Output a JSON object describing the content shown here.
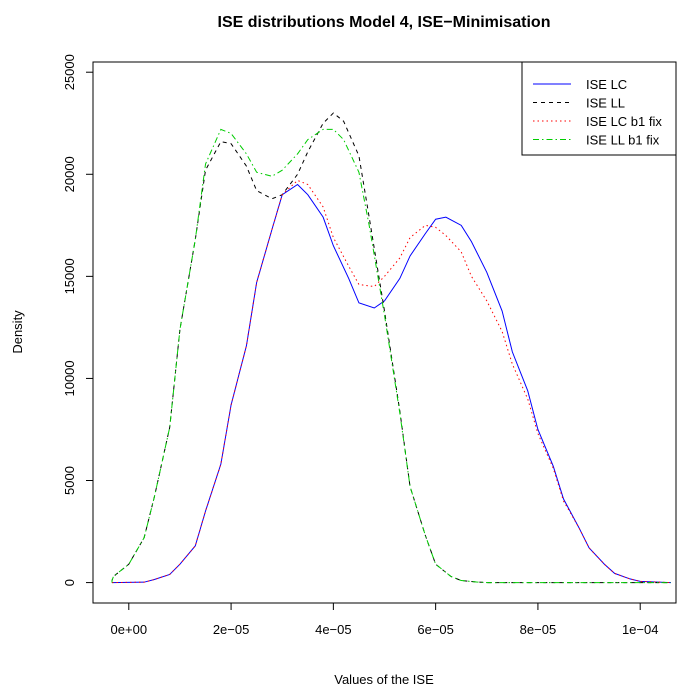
{
  "chart_data": {
    "type": "line",
    "title": "ISE distributions Model 4, ISE−Minimisation",
    "xlabel": "Values of the ISE",
    "ylabel": "Density",
    "xlim": [
      -7e-06,
      0.000107
    ],
    "ylim": [
      -1000,
      25500
    ],
    "x_ticks": [
      0,
      2e-05,
      4e-05,
      6e-05,
      8e-05,
      0.0001
    ],
    "x_tick_labels": [
      "0e+00",
      "2e−05",
      "4e−05",
      "6e−05",
      "8e−05",
      "1e−04"
    ],
    "y_ticks": [
      0,
      5000,
      10000,
      15000,
      20000,
      25000
    ],
    "y_tick_labels": [
      "0",
      "5000",
      "10000",
      "15000",
      "20000",
      "25000"
    ],
    "grid": false,
    "legend_position": "top-right",
    "series": [
      {
        "name": "ISE LC",
        "color": "#0000ff",
        "dash": "solid",
        "points": [
          [
            -1.5e-05,
            0
          ],
          [
            3e-06,
            20
          ],
          [
            5e-06,
            150
          ],
          [
            8e-06,
            400
          ],
          [
            1e-05,
            900
          ],
          [
            1.3e-05,
            1800
          ],
          [
            1.5e-05,
            3500
          ],
          [
            1.8e-05,
            5800
          ],
          [
            2e-05,
            8700
          ],
          [
            2.3e-05,
            11600
          ],
          [
            2.5e-05,
            14700
          ],
          [
            2.8e-05,
            17300
          ],
          [
            3e-05,
            19000
          ],
          [
            3.3e-05,
            19500
          ],
          [
            3.5e-05,
            19000
          ],
          [
            3.8e-05,
            17900
          ],
          [
            4e-05,
            16500
          ],
          [
            4.3e-05,
            14900
          ],
          [
            4.5e-05,
            13700
          ],
          [
            4.8e-05,
            13450
          ],
          [
            5e-05,
            13800
          ],
          [
            5.3e-05,
            14900
          ],
          [
            5.5e-05,
            16000
          ],
          [
            5.8e-05,
            17100
          ],
          [
            6e-05,
            17800
          ],
          [
            6.2e-05,
            17900
          ],
          [
            6.5e-05,
            17500
          ],
          [
            6.7e-05,
            16700
          ],
          [
            7e-05,
            15200
          ],
          [
            7.3e-05,
            13300
          ],
          [
            7.5e-05,
            11300
          ],
          [
            7.8e-05,
            9400
          ],
          [
            8e-05,
            7500
          ],
          [
            8.3e-05,
            5700
          ],
          [
            8.5e-05,
            4100
          ],
          [
            8.8e-05,
            2700
          ],
          [
            9e-05,
            1700
          ],
          [
            9.3e-05,
            900
          ],
          [
            9.5e-05,
            450
          ],
          [
            9.8e-05,
            180
          ],
          [
            0.0001,
            60
          ],
          [
            0.000106,
            0
          ]
        ]
      },
      {
        "name": "ISE LL",
        "color": "#000000",
        "dash": "4,4",
        "points": [
          [
            -1.5e-05,
            0
          ],
          [
            -5e-06,
            100
          ],
          [
            -3e-06,
            300
          ],
          [
            0.0,
            900
          ],
          [
            3e-06,
            2200
          ],
          [
            5e-06,
            4200
          ],
          [
            8e-06,
            7600
          ],
          [
            1e-05,
            12400
          ],
          [
            1.3e-05,
            16800
          ],
          [
            1.5e-05,
            20200
          ],
          [
            1.8e-05,
            21600
          ],
          [
            2e-05,
            21500
          ],
          [
            2.3e-05,
            20400
          ],
          [
            2.5e-05,
            19200
          ],
          [
            2.8e-05,
            18800
          ],
          [
            3e-05,
            19000
          ],
          [
            3.3e-05,
            20000
          ],
          [
            3.5e-05,
            21100
          ],
          [
            3.8e-05,
            22500
          ],
          [
            4e-05,
            23000
          ],
          [
            4.2e-05,
            22600
          ],
          [
            4.5e-05,
            20900
          ],
          [
            4.7e-05,
            17900
          ],
          [
            5e-05,
            13300
          ],
          [
            5.3e-05,
            8400
          ],
          [
            5.5e-05,
            4700
          ],
          [
            5.8e-05,
            2300
          ],
          [
            6e-05,
            900
          ],
          [
            6.3e-05,
            300
          ],
          [
            6.5e-05,
            100
          ],
          [
            6.8e-05,
            30
          ],
          [
            7e-05,
            0
          ],
          [
            0.000106,
            0
          ]
        ]
      },
      {
        "name": "ISE LC b1 fix",
        "color": "#ff0000",
        "dash": "1.5,3",
        "points": [
          [
            -1.5e-05,
            0
          ],
          [
            3e-06,
            20
          ],
          [
            5e-06,
            150
          ],
          [
            8e-06,
            400
          ],
          [
            1e-05,
            900
          ],
          [
            1.3e-05,
            1800
          ],
          [
            1.5e-05,
            3500
          ],
          [
            1.8e-05,
            5800
          ],
          [
            2e-05,
            8700
          ],
          [
            2.3e-05,
            11600
          ],
          [
            2.5e-05,
            14700
          ],
          [
            2.8e-05,
            17300
          ],
          [
            3e-05,
            19000
          ],
          [
            3.3e-05,
            19700
          ],
          [
            3.5e-05,
            19500
          ],
          [
            3.8e-05,
            18400
          ],
          [
            4e-05,
            16900
          ],
          [
            4.3e-05,
            15500
          ],
          [
            4.5e-05,
            14600
          ],
          [
            4.8e-05,
            14500
          ],
          [
            5e-05,
            15000
          ],
          [
            5.3e-05,
            15900
          ],
          [
            5.5e-05,
            16900
          ],
          [
            5.8e-05,
            17500
          ],
          [
            6e-05,
            17400
          ],
          [
            6.2e-05,
            17000
          ],
          [
            6.5e-05,
            16200
          ],
          [
            6.7e-05,
            15000
          ],
          [
            7e-05,
            13800
          ],
          [
            7.3e-05,
            12300
          ],
          [
            7.5e-05,
            10700
          ],
          [
            7.8e-05,
            9000
          ],
          [
            8e-05,
            7300
          ],
          [
            8.3e-05,
            5600
          ],
          [
            8.5e-05,
            4000
          ],
          [
            8.8e-05,
            2700
          ],
          [
            9e-05,
            1700
          ],
          [
            9.3e-05,
            900
          ],
          [
            9.5e-05,
            450
          ],
          [
            9.8e-05,
            180
          ],
          [
            0.0001,
            60
          ],
          [
            0.000106,
            0
          ]
        ]
      },
      {
        "name": "ISE LL b1 fix",
        "color": "#00cc00",
        "dash": "6,3,1.5,3",
        "points": [
          [
            -1.5e-05,
            0
          ],
          [
            -5e-06,
            100
          ],
          [
            -3e-06,
            300
          ],
          [
            0.0,
            900
          ],
          [
            3e-06,
            2200
          ],
          [
            5e-06,
            4200
          ],
          [
            8e-06,
            7600
          ],
          [
            1e-05,
            12400
          ],
          [
            1.3e-05,
            16800
          ],
          [
            1.5e-05,
            20500
          ],
          [
            1.8e-05,
            22200
          ],
          [
            2e-05,
            22000
          ],
          [
            2.3e-05,
            21000
          ],
          [
            2.5e-05,
            20100
          ],
          [
            2.8e-05,
            19900
          ],
          [
            3e-05,
            20200
          ],
          [
            3.3e-05,
            21000
          ],
          [
            3.5e-05,
            21700
          ],
          [
            3.8e-05,
            22200
          ],
          [
            4e-05,
            22200
          ],
          [
            4.2e-05,
            21700
          ],
          [
            4.5e-05,
            20100
          ],
          [
            4.7e-05,
            17500
          ],
          [
            5e-05,
            13100
          ],
          [
            5.3e-05,
            8300
          ],
          [
            5.5e-05,
            4700
          ],
          [
            5.8e-05,
            2300
          ],
          [
            6e-05,
            900
          ],
          [
            6.3e-05,
            300
          ],
          [
            6.5e-05,
            100
          ],
          [
            6.8e-05,
            30
          ],
          [
            7e-05,
            0
          ],
          [
            0.000106,
            0
          ]
        ]
      }
    ]
  }
}
